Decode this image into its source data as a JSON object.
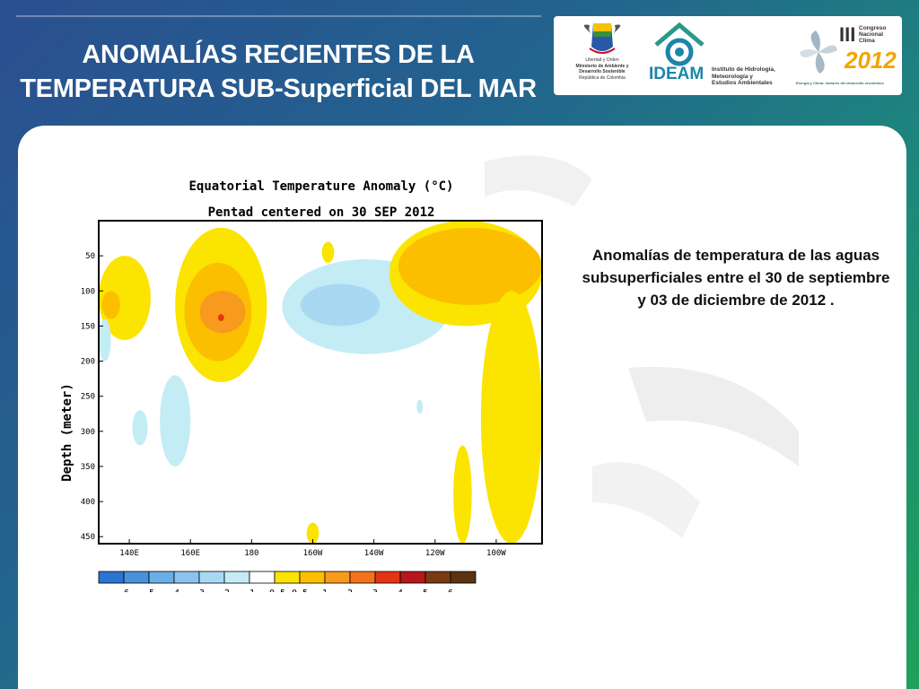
{
  "slide": {
    "title_line1": "ANOMALÍAS RECIENTES DE LA",
    "title_line2": "TEMPERATURA SUB-Superficial DEL MAR",
    "side_text": "Anomalías de temperatura de las aguas subsuperficiales entre el 30 de septiembre y 03 de diciembre de 2012 ."
  },
  "logos": {
    "colombia": {
      "line1": "Libertad y Orden",
      "line2": "Ministerio de Ambiente y",
      "line3": "Desarrollo Sostenible",
      "line4": "República de Colombia"
    },
    "ideam": {
      "name": "IDEAM",
      "line1": "Instituto de Hidrología,",
      "line2": "Meteorología y",
      "line3": "Estudios Ambientales"
    },
    "congreso": {
      "roman": "III",
      "line1": "Congreso",
      "line2": "Nacional",
      "line3": "Clima",
      "year": "2012",
      "tagline": "Energía y Clima: motores del desarrollo económico"
    }
  },
  "colors": {
    "accent": "#c8102e",
    "pos": [
      "#fbe400",
      "#fbbf00",
      "#f79a1e",
      "#f3721d",
      "#e53414",
      "#b5181b",
      "#7a3a12",
      "#5a3310"
    ],
    "neg": [
      "#c4ecf5",
      "#a9d9f2",
      "#8cc3ee",
      "#6aaee6",
      "#4a91dc",
      "#2c74d2"
    ]
  },
  "chart_data": {
    "type": "heatmap",
    "title": "Equatorial Temperature Anomaly (°C)",
    "subtitle": "Pentad centered on 30 SEP 2012",
    "ylabel": "Depth (meter)",
    "xlabel": "",
    "x_ticks": [
      "140E",
      "160E",
      "180",
      "160W",
      "140W",
      "120W",
      "100W"
    ],
    "x_range": [
      130,
      275
    ],
    "x_tick_values": [
      140,
      160,
      180,
      200,
      220,
      240,
      260
    ],
    "y_ticks": [
      "50",
      "100",
      "150",
      "200",
      "250",
      "300",
      "350",
      "400",
      "450"
    ],
    "y_tick_values": [
      50,
      100,
      150,
      200,
      250,
      300,
      350,
      400,
      450
    ],
    "y_range": [
      0,
      460
    ],
    "y_reversed": true,
    "grid": false,
    "colorbar_labels": [
      "-6",
      "-5",
      "-4",
      "-3",
      "-2",
      "-1",
      "-0.5",
      "0.5",
      "1",
      "2",
      "3",
      "4",
      "5",
      "6"
    ],
    "anomaly_regions": [
      {
        "level": 1,
        "x": [
          130,
          147
        ],
        "y": [
          50,
          170
        ],
        "note": "warm, west edge"
      },
      {
        "level": 2,
        "x": [
          131,
          137
        ],
        "y": [
          100,
          140
        ]
      },
      {
        "level": 1,
        "x": [
          155,
          185
        ],
        "y": [
          10,
          230
        ]
      },
      {
        "level": 2,
        "x": [
          158,
          180
        ],
        "y": [
          60,
          200
        ]
      },
      {
        "level": 3,
        "x": [
          163,
          178
        ],
        "y": [
          100,
          160
        ]
      },
      {
        "level": 5,
        "x": [
          169,
          171
        ],
        "y": [
          133,
          143
        ]
      },
      {
        "level": 1,
        "x": [
          203,
          207
        ],
        "y": [
          30,
          60
        ]
      },
      {
        "level": -1,
        "x": [
          190,
          245
        ],
        "y": [
          55,
          190
        ]
      },
      {
        "level": -2,
        "x": [
          196,
          222
        ],
        "y": [
          90,
          150
        ]
      },
      {
        "level": -1,
        "x": [
          150,
          160
        ],
        "y": [
          220,
          350
        ]
      },
      {
        "level": -1,
        "x": [
          141,
          146
        ],
        "y": [
          270,
          320
        ]
      },
      {
        "level": -1,
        "x": [
          130,
          134
        ],
        "y": [
          140,
          200
        ]
      },
      {
        "level": 1,
        "x": [
          225,
          275
        ],
        "y": [
          0,
          150
        ]
      },
      {
        "level": 2,
        "x": [
          228,
          275
        ],
        "y": [
          10,
          120
        ]
      },
      {
        "level": 1,
        "x": [
          255,
          275
        ],
        "y": [
          100,
          460
        ]
      },
      {
        "level": 1,
        "x": [
          246,
          252
        ],
        "y": [
          320,
          460
        ]
      },
      {
        "level": 1,
        "x": [
          198,
          202
        ],
        "y": [
          430,
          460
        ]
      },
      {
        "level": -1,
        "x": [
          234,
          236
        ],
        "y": [
          255,
          275
        ]
      }
    ]
  }
}
